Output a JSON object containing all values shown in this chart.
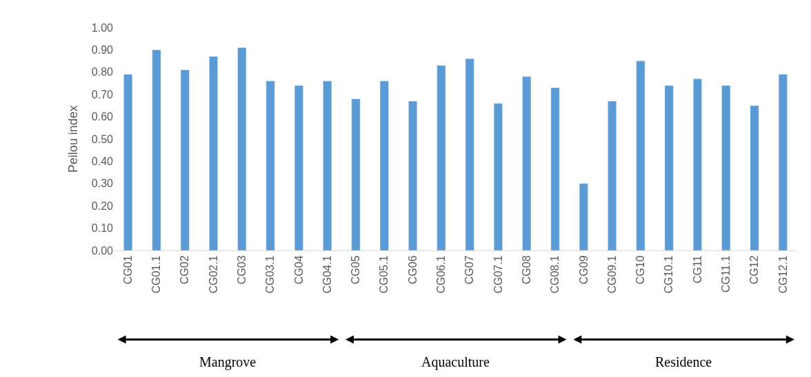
{
  "chart_data": {
    "type": "bar",
    "ylabel": "Peilou index",
    "categories": [
      "CG01",
      "CG01.1",
      "CG02",
      "CG02.1",
      "CG03",
      "CG03.1",
      "CG04",
      "CG04.1",
      "CG05",
      "CG05.1",
      "CG06",
      "CG06.1",
      "CG07",
      "CG07.1",
      "CG08",
      "CG08.1",
      "CG09",
      "CG09.1",
      "CG10",
      "CG10.1",
      "CG11",
      "CG11.1",
      "CG12",
      "CG12.1"
    ],
    "values": [
      0.79,
      0.9,
      0.81,
      0.87,
      0.91,
      0.76,
      0.74,
      0.76,
      0.68,
      0.76,
      0.67,
      0.83,
      0.86,
      0.66,
      0.78,
      0.73,
      0.3,
      0.67,
      0.85,
      0.74,
      0.77,
      0.74,
      0.65,
      0.79
    ],
    "color": "#5b9bd5",
    "ylim": [
      0,
      1
    ],
    "yticks": [
      {
        "value": 0,
        "label": "0.00"
      },
      {
        "value": 0.1,
        "label": "0.10"
      },
      {
        "value": 0.2,
        "label": "0.20"
      },
      {
        "value": 0.3,
        "label": "0.30"
      },
      {
        "value": 0.4,
        "label": "0.40"
      },
      {
        "value": 0.5,
        "label": "0.50"
      },
      {
        "value": 0.6,
        "label": "0.60"
      },
      {
        "value": 0.7,
        "label": "0.70"
      },
      {
        "value": 0.8,
        "label": "0.80"
      },
      {
        "value": 0.9,
        "label": "0.90"
      },
      {
        "value": 1,
        "label": "1.00"
      }
    ],
    "grid": false,
    "annotations": [
      "Mangrove",
      "Aquaculture",
      "Residence"
    ]
  }
}
